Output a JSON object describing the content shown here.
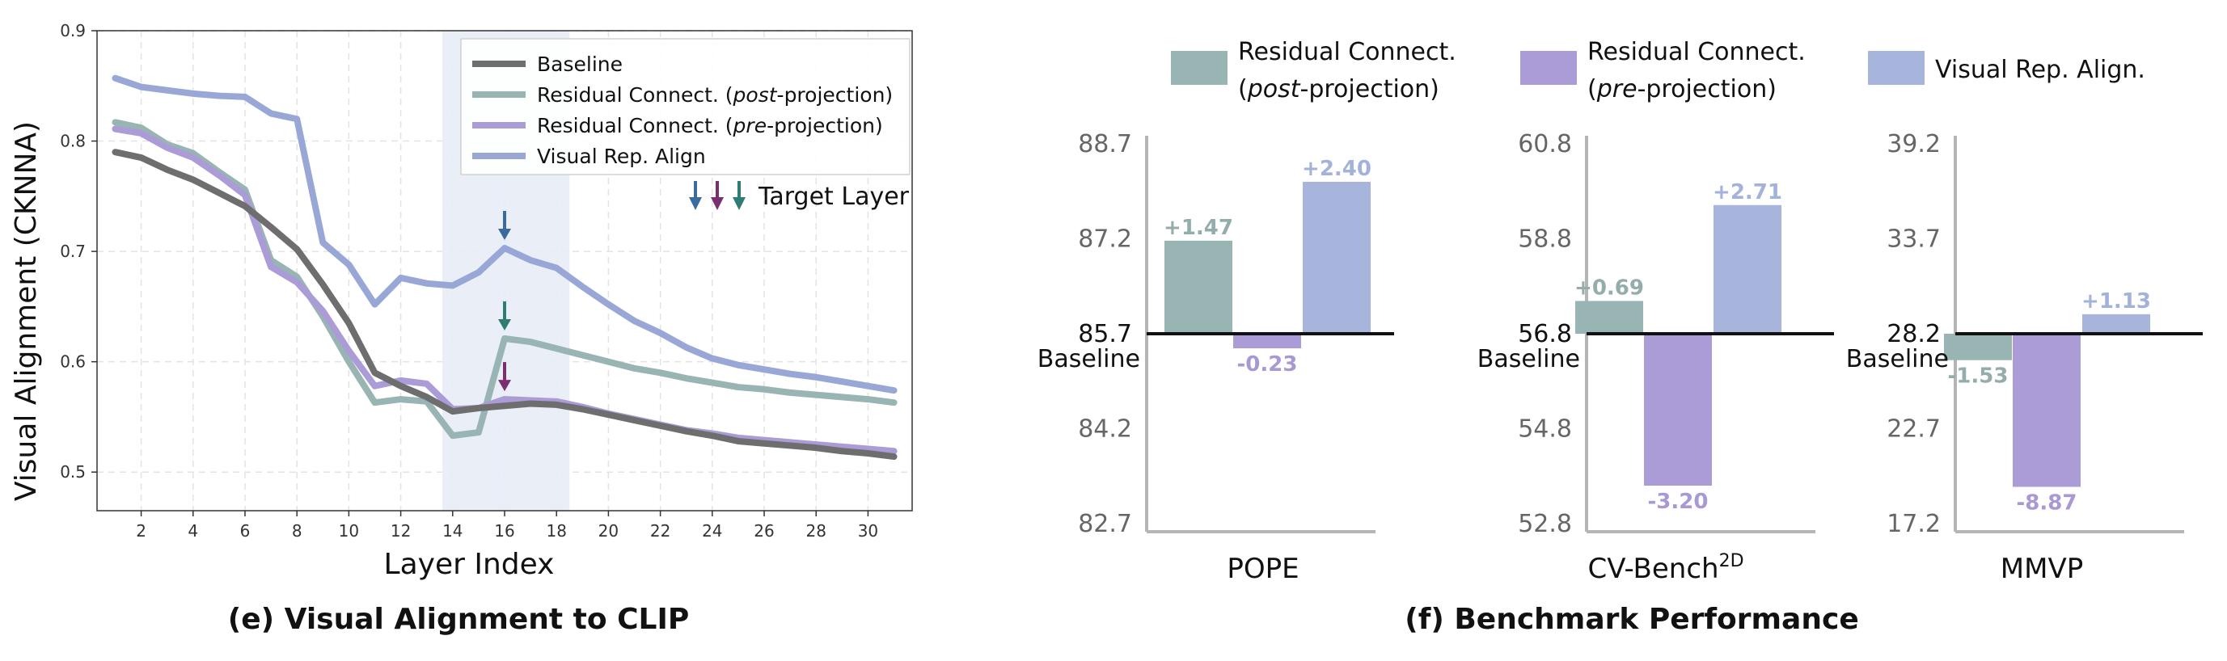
{
  "left_panel": {
    "caption": "(e) Visual Alignment to CLIP",
    "xlabel": "Layer Index",
    "ylabel": "Visual Alignment (CKNNA)",
    "target_layer_label": "Target Layer"
  },
  "right_panel": {
    "caption": "(f) Benchmark Performance",
    "baseline_label": "Baseline",
    "legend": [
      {
        "line1": "Residual Connect.",
        "line2_italic": "post",
        "line2_rest": "-projection",
        "color": "#98b5b3"
      },
      {
        "line1": "Residual Connect.",
        "line2_italic": "pre",
        "line2_rest": "-projection",
        "color": "#ab9bd6"
      },
      {
        "line1": "Visual Rep. Align.",
        "line2_italic": "",
        "line2_rest": "",
        "color": "#a7b5dc"
      }
    ]
  },
  "chart_data": [
    {
      "type": "line",
      "title": "(e) Visual Alignment to CLIP",
      "xlabel": "Layer Index",
      "ylabel": "Visual Alignment (CKNNA)",
      "xlim": [
        0.3,
        31.7
      ],
      "ylim": [
        0.465,
        0.9
      ],
      "xticks": [
        2,
        4,
        6,
        8,
        10,
        12,
        14,
        16,
        18,
        20,
        22,
        24,
        26,
        28,
        30
      ],
      "yticks": [
        0.5,
        0.6,
        0.7,
        0.8,
        0.9
      ],
      "grid": true,
      "legend_position": "top-right",
      "highlight_band": [
        13.6,
        18.5
      ],
      "annotations": [
        {
          "x": 16,
          "series": "Visual Rep. Align"
        },
        {
          "x": 16,
          "series": "Residual Connect. (post-projection)"
        },
        {
          "x": 16,
          "series": "Residual Connect. (pre-projection)"
        }
      ],
      "x": [
        1,
        2,
        3,
        4,
        5,
        6,
        7,
        8,
        9,
        10,
        11,
        12,
        13,
        14,
        15,
        16,
        17,
        18,
        19,
        20,
        21,
        22,
        23,
        24,
        25,
        26,
        27,
        28,
        29,
        30,
        31
      ],
      "series": [
        {
          "name": "Baseline",
          "label_italic": "",
          "label_rest": "",
          "color": "#6e6e6e",
          "values": [
            0.79,
            0.785,
            0.774,
            0.765,
            0.753,
            0.741,
            0.722,
            0.702,
            0.67,
            0.635,
            0.59,
            0.578,
            0.568,
            0.555,
            0.558,
            0.56,
            0.562,
            0.561,
            0.557,
            0.552,
            0.547,
            0.542,
            0.537,
            0.533,
            0.528,
            0.526,
            0.524,
            0.522,
            0.519,
            0.517,
            0.514
          ]
        },
        {
          "name": "Residual Connect. (post-projection)",
          "label_italic": "post",
          "label_rest": "-projection)",
          "label_prefix": "Residual Connect. (",
          "color": "#98b5b3",
          "values": [
            0.817,
            0.812,
            0.797,
            0.789,
            0.772,
            0.756,
            0.692,
            0.677,
            0.641,
            0.6,
            0.563,
            0.566,
            0.564,
            0.533,
            0.536,
            0.621,
            0.618,
            0.612,
            0.606,
            0.6,
            0.594,
            0.59,
            0.585,
            0.581,
            0.577,
            0.575,
            0.572,
            0.57,
            0.568,
            0.566,
            0.563
          ]
        },
        {
          "name": "Residual Connect. (pre-projection)",
          "label_italic": "pre",
          "label_rest": "-projection)",
          "label_prefix": "Residual Connect. (",
          "color": "#ab9bd6",
          "values": [
            0.811,
            0.807,
            0.794,
            0.785,
            0.769,
            0.751,
            0.686,
            0.672,
            0.646,
            0.61,
            0.578,
            0.583,
            0.58,
            0.557,
            0.558,
            0.566,
            0.565,
            0.564,
            0.559,
            0.553,
            0.548,
            0.543,
            0.538,
            0.535,
            0.531,
            0.529,
            0.527,
            0.525,
            0.523,
            0.521,
            0.519
          ]
        },
        {
          "name": "Visual Rep. Align",
          "label_italic": "",
          "label_rest": "",
          "color": "#98a7d6",
          "values": [
            0.857,
            0.849,
            0.846,
            0.843,
            0.841,
            0.84,
            0.825,
            0.82,
            0.708,
            0.688,
            0.652,
            0.676,
            0.671,
            0.669,
            0.681,
            0.703,
            0.692,
            0.685,
            0.668,
            0.652,
            0.637,
            0.626,
            0.613,
            0.603,
            0.597,
            0.593,
            0.589,
            0.586,
            0.582,
            0.578,
            0.574
          ]
        }
      ]
    },
    {
      "type": "bar",
      "title": "POPE",
      "baseline": 85.7,
      "ylim": [
        82.7,
        88.7
      ],
      "yticks": [
        "82.7",
        "84.2",
        "85.7",
        "87.2",
        "88.7"
      ],
      "categories": [
        "Residual Connect. (post-projection)",
        "Residual Connect. (pre-projection)",
        "Visual Rep. Align."
      ],
      "deltas": [
        1.47,
        -0.23,
        2.4
      ],
      "labels": [
        "+1.47",
        "-0.23",
        "+2.40"
      ]
    },
    {
      "type": "bar",
      "title": "CV-Bench",
      "title_sup": "2D",
      "baseline": 56.8,
      "ylim": [
        52.8,
        60.8
      ],
      "yticks": [
        "52.8",
        "54.8",
        "56.8",
        "58.8",
        "60.8"
      ],
      "categories": [
        "Residual Connect. (post-projection)",
        "Residual Connect. (pre-projection)",
        "Visual Rep. Align."
      ],
      "deltas": [
        0.69,
        -3.2,
        2.71
      ],
      "labels": [
        "+0.69",
        "-3.20",
        "+2.71"
      ]
    },
    {
      "type": "bar",
      "title": "MMVP",
      "baseline": 28.2,
      "ylim": [
        17.2,
        39.2
      ],
      "yticks": [
        "17.2",
        "22.7",
        "28.2",
        "33.7",
        "39.2"
      ],
      "categories": [
        "Residual Connect. (post-projection)",
        "Residual Connect. (pre-projection)",
        "Visual Rep. Align."
      ],
      "deltas": [
        -1.53,
        -8.87,
        1.13
      ],
      "labels": [
        "-1.53",
        "-8.87",
        "+1.13"
      ]
    }
  ]
}
